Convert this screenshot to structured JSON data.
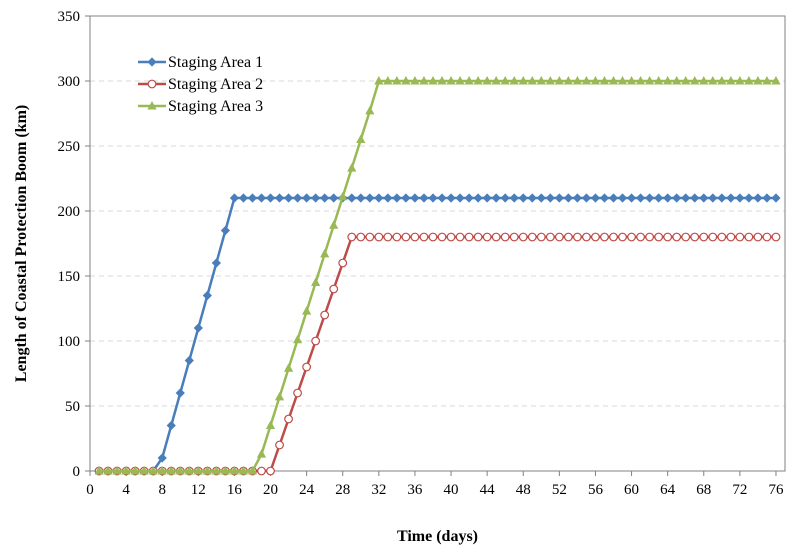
{
  "chart_data": {
    "type": "line",
    "title": "",
    "xlabel": "Time (days)",
    "ylabel": "Length of Coastal Protection Boom (km)",
    "xlim": [
      0,
      77
    ],
    "ylim": [
      0,
      350
    ],
    "x_ticks": [
      0,
      4,
      8,
      12,
      16,
      20,
      24,
      28,
      32,
      36,
      40,
      44,
      48,
      52,
      56,
      60,
      64,
      68,
      72,
      76
    ],
    "y_ticks": [
      0,
      50,
      100,
      150,
      200,
      250,
      300,
      350
    ],
    "grid": "horizontal dashed",
    "legend_position": "top-left",
    "series": [
      {
        "name": "Staging Area 1",
        "color": "#4a7ebb",
        "marker": "diamond",
        "points": [
          [
            1,
            0
          ],
          [
            7,
            0
          ],
          [
            8,
            10
          ],
          [
            9,
            35
          ],
          [
            10,
            60
          ],
          [
            11,
            85
          ],
          [
            12,
            110
          ],
          [
            13,
            135
          ],
          [
            14,
            160
          ],
          [
            15,
            185
          ],
          [
            16,
            210
          ],
          [
            76,
            210
          ]
        ]
      },
      {
        "name": "Staging Area 2",
        "color": "#be4b48",
        "marker": "open-circle",
        "points": [
          [
            1,
            0
          ],
          [
            20,
            0
          ],
          [
            21,
            20
          ],
          [
            22,
            40
          ],
          [
            23,
            60
          ],
          [
            24,
            80
          ],
          [
            25,
            100
          ],
          [
            26,
            120
          ],
          [
            27,
            140
          ],
          [
            28,
            160
          ],
          [
            29,
            180
          ],
          [
            76,
            180
          ]
        ]
      },
      {
        "name": "Staging Area 3",
        "color": "#98b954",
        "marker": "triangle",
        "points": [
          [
            1,
            0
          ],
          [
            18,
            0
          ],
          [
            19,
            13
          ],
          [
            20,
            35
          ],
          [
            21,
            57
          ],
          [
            22,
            79
          ],
          [
            23,
            101
          ],
          [
            24,
            123
          ],
          [
            25,
            145
          ],
          [
            26,
            167
          ],
          [
            27,
            189
          ],
          [
            28,
            211
          ],
          [
            29,
            233
          ],
          [
            30,
            255
          ],
          [
            31,
            277
          ],
          [
            32,
            300
          ],
          [
            76,
            300
          ]
        ]
      }
    ]
  }
}
